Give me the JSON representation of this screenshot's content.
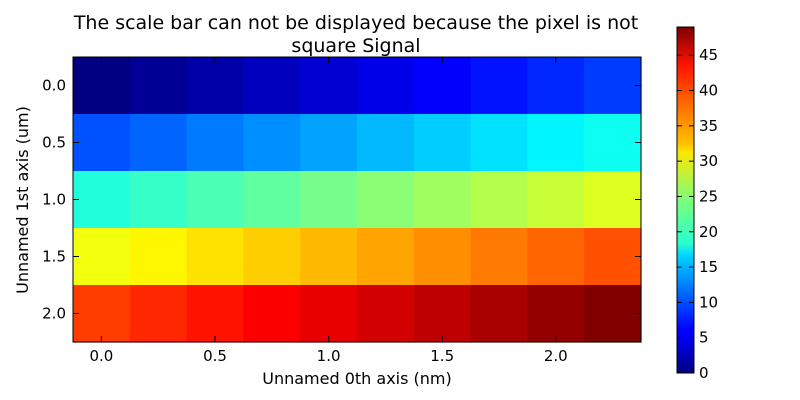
{
  "chart_data": {
    "type": "heatmap",
    "title_line1": "The scale bar can not be displayed because the pixel is not",
    "title_line2": "square Signal",
    "xlabel": "Unnamed 0th axis (nm)",
    "ylabel": "Unnamed 1st axis (um)",
    "x_ticks": [
      "0.0",
      "0.5",
      "1.0",
      "1.5",
      "2.0"
    ],
    "x_tick_values": [
      0.0,
      0.5,
      1.0,
      1.5,
      2.0
    ],
    "y_ticks": [
      "0.0",
      "0.5",
      "1.0",
      "1.5",
      "2.0"
    ],
    "y_tick_values": [
      0.0,
      0.5,
      1.0,
      1.5,
      2.0
    ],
    "x_start": 0.0,
    "x_step": 0.25,
    "y_start": 0.0,
    "y_step": 0.5,
    "values": [
      [
        0,
        1,
        2,
        3,
        4,
        5,
        6,
        7,
        8,
        9
      ],
      [
        10,
        11,
        12,
        13,
        14,
        15,
        16,
        17,
        18,
        19
      ],
      [
        20,
        21,
        22,
        23,
        24,
        25,
        26,
        27,
        28,
        29
      ],
      [
        30,
        31,
        32,
        33,
        34,
        35,
        36,
        37,
        38,
        39
      ],
      [
        40,
        41,
        42,
        43,
        44,
        45,
        46,
        47,
        48,
        49
      ]
    ],
    "colormap": "jet",
    "vmin": 0,
    "vmax": 49,
    "colorbar_ticks": [
      "0",
      "5",
      "10",
      "15",
      "20",
      "25",
      "30",
      "35",
      "40",
      "45"
    ],
    "colorbar_tick_values": [
      0,
      5,
      10,
      15,
      20,
      25,
      30,
      35,
      40,
      45
    ]
  }
}
